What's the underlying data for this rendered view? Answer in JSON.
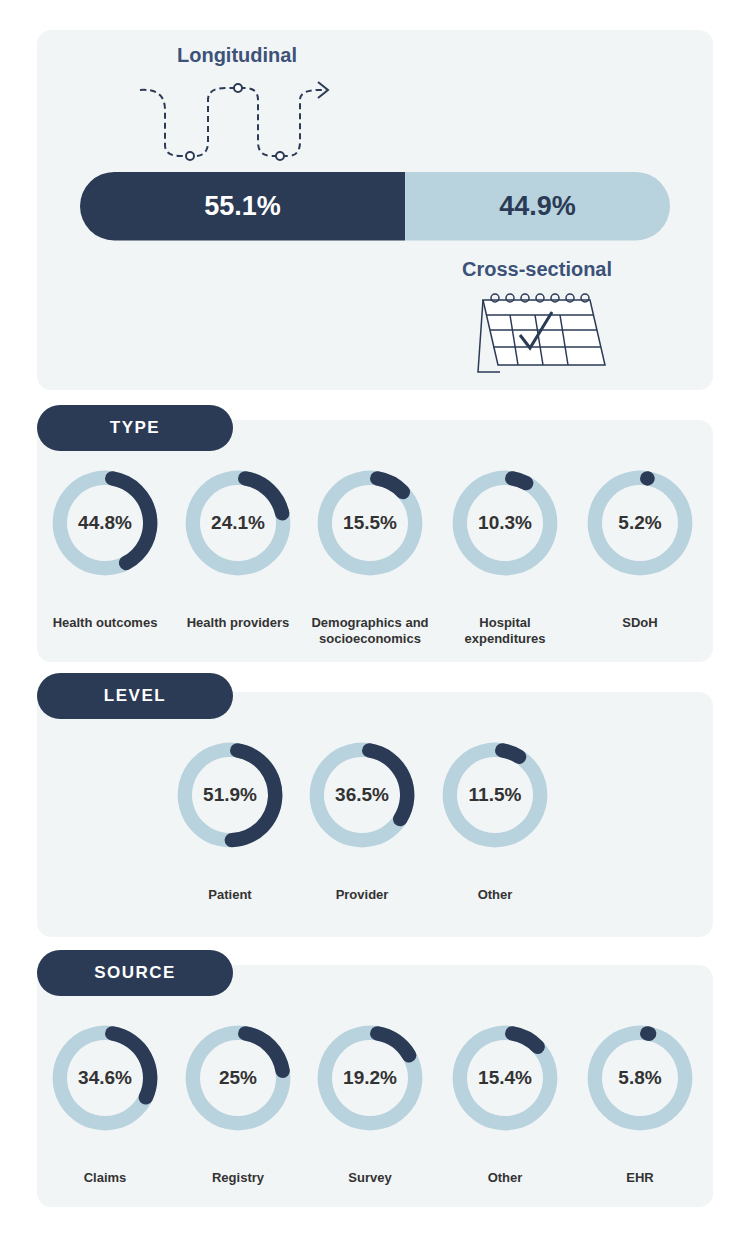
{
  "chart_data": [
    {
      "type": "bar",
      "orientation": "horizontal",
      "stacked": true,
      "data_labels": true,
      "tick_labels": false,
      "categories": [
        null
      ],
      "xlim": [
        0,
        100
      ],
      "series": [
        {
          "name": "Longitudinal",
          "color": "#2b3a55",
          "values": [
            55.1
          ],
          "value_labels": [
            "55.1%"
          ]
        },
        {
          "name": "Cross-sectional",
          "color": "#b9d3de",
          "values": [
            44.9
          ],
          "value_labels": [
            "44.9%"
          ]
        }
      ]
    },
    {
      "type": "pie",
      "title": "TYPE",
      "data_labels": true,
      "color": "#2b3a55",
      "ylim": [
        0,
        100
      ],
      "categories": [
        "Health outcomes",
        "Health providers",
        "Demographics and socioeconomics",
        "Hospital expenditures",
        "SDoH"
      ],
      "values": [
        44.8,
        24.1,
        15.5,
        10.3,
        5.2
      ],
      "value_labels": [
        "44.8%",
        "24.1%",
        "15.5%",
        "10.3%",
        "5.2%"
      ]
    },
    {
      "type": "pie",
      "title": "LEVEL",
      "data_labels": true,
      "color": "#2b3a55",
      "ylim": [
        0,
        100
      ],
      "categories": [
        "Patient",
        "Provider",
        "Other"
      ],
      "values": [
        51.9,
        36.5,
        11.5
      ],
      "value_labels": [
        "51.9%",
        "36.5%",
        "11.5%"
      ]
    },
    {
      "type": "pie",
      "title": "SOURCE",
      "data_labels": true,
      "color": "#2b3a55",
      "ylim": [
        0,
        100
      ],
      "categories": [
        "Claims",
        "Registry",
        "Survey",
        "Other",
        "EHR"
      ],
      "values": [
        34.6,
        25,
        19.2,
        15.4,
        5.8
      ],
      "value_labels": [
        "34.6%",
        "25%",
        "19.2%",
        "15.4%",
        "5.8%"
      ]
    }
  ]
}
